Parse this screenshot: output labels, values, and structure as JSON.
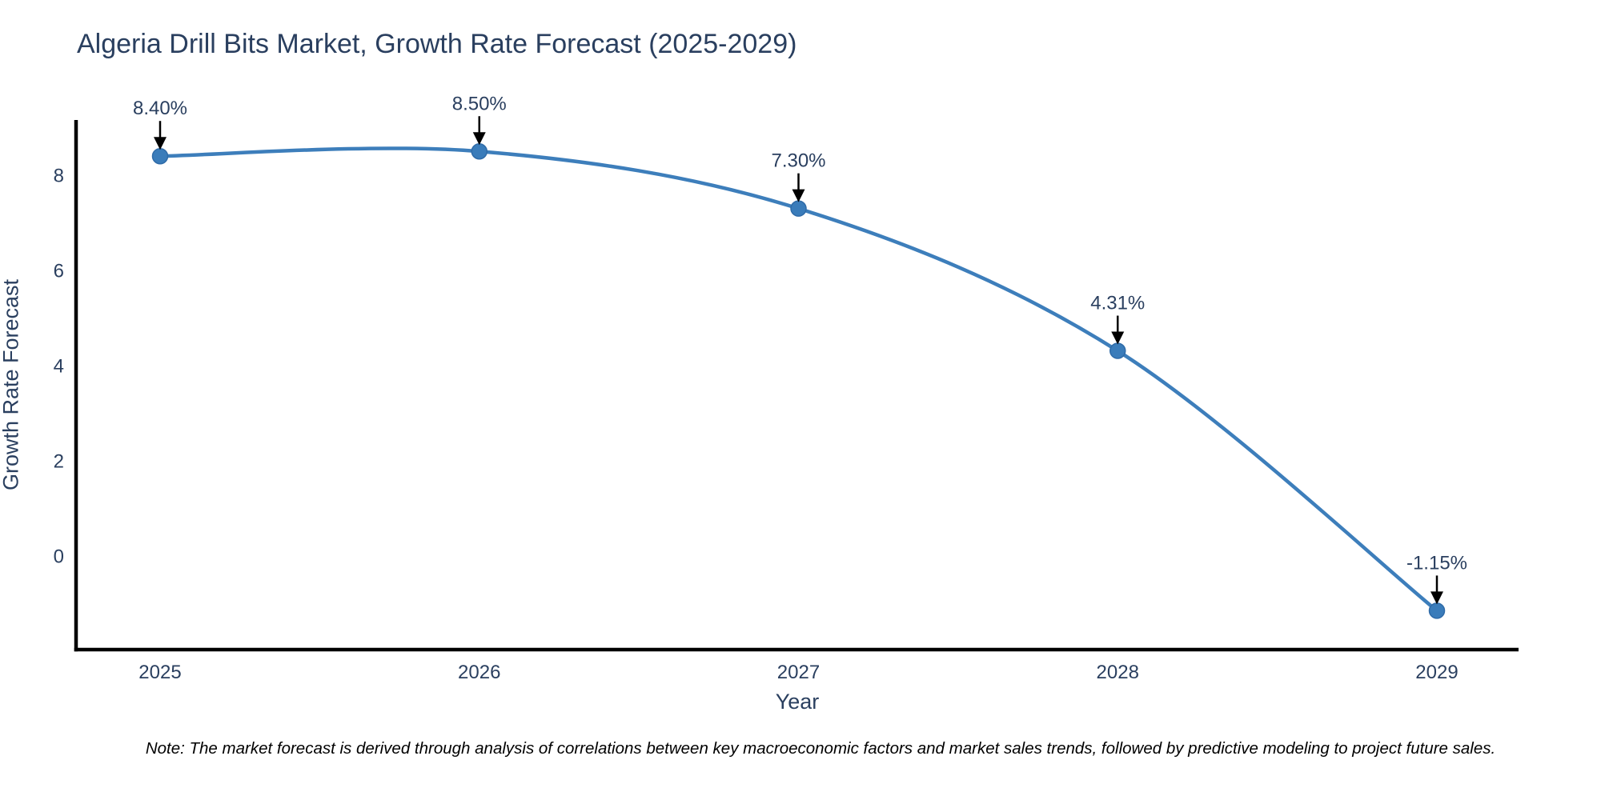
{
  "chart_data": {
    "type": "line",
    "title": "Algeria Drill Bits Market, Growth Rate Forecast (2025-2029)",
    "xlabel": "Year",
    "ylabel": "Growth Rate Forecast",
    "note": "Note: The market forecast is derived through analysis of correlations between key macroeconomic factors and market sales trends, followed by predictive modeling to project future sales.",
    "categories": [
      "2025",
      "2026",
      "2027",
      "2028",
      "2029"
    ],
    "x": [
      2025,
      2026,
      2027,
      2028,
      2029
    ],
    "values": [
      8.4,
      8.5,
      7.3,
      4.31,
      -1.15
    ],
    "point_labels": [
      "8.40%",
      "8.50%",
      "7.30%",
      "4.31%",
      "-1.15%"
    ],
    "yticks": [
      0,
      2,
      4,
      6,
      8
    ],
    "ylim": [
      -1.97,
      9.16
    ],
    "xlim": [
      2024.74,
      2029.26
    ],
    "line_shape": "spline",
    "grid": false,
    "legend": "none",
    "colors": {
      "line": "#3d7ebb",
      "marker_fill": "#3a7cba",
      "marker_edge": "#2f6ba8",
      "axis_spine": "#000000",
      "tick_text": "#2a3f5f",
      "annotation_text": "#2a3f5f",
      "annotation_arrow": "#000000",
      "title_text": "#2a3f5f",
      "note_text": "#000000",
      "background": "#ffffff"
    }
  }
}
